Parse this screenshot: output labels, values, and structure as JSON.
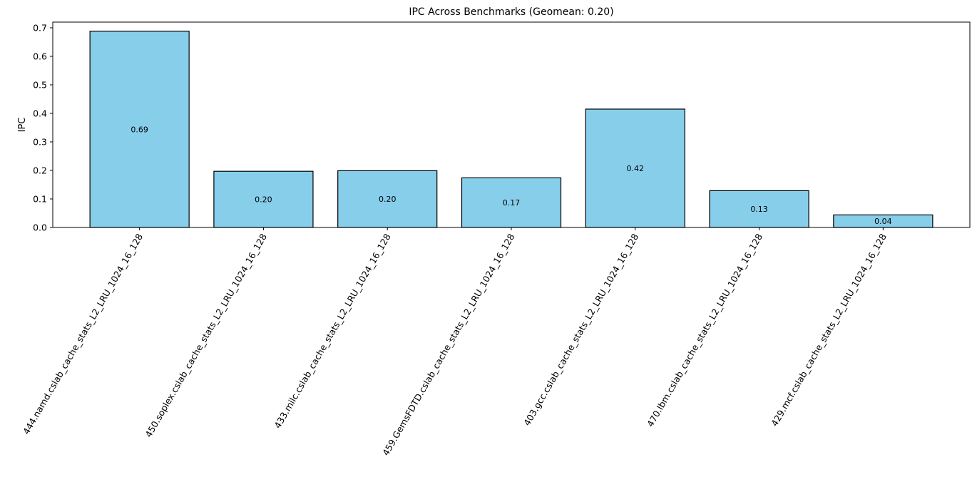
{
  "chart_data": {
    "type": "bar",
    "title": "IPC Across Benchmarks (Geomean: 0.20)",
    "xlabel": "",
    "ylabel": "IPC",
    "ylim": [
      0,
      0.72
    ],
    "yticks": [
      "0.0",
      "0.1",
      "0.2",
      "0.3",
      "0.4",
      "0.5",
      "0.6",
      "0.7"
    ],
    "categories": [
      "444.namd.cslab_cache_stats_L2_LRU_1024_16_128",
      "450.soplex.cslab_cache_stats_L2_LRU_1024_16_128",
      "433.milc.cslab_cache_stats_L2_LRU_1024_16_128",
      "459.GemsFDTD.cslab_cache_stats_L2_LRU_1024_16_128",
      "403.gcc.cslab_cache_stats_L2_LRU_1024_16_128",
      "470.lbm.cslab_cache_stats_L2_LRU_1024_16_128",
      "429.mcf.cslab_cache_stats_L2_LRU_1024_16_128"
    ],
    "values": [
      0.688,
      0.197,
      0.199,
      0.174,
      0.415,
      0.129,
      0.044
    ],
    "data_labels": [
      "0.69",
      "0.20",
      "0.20",
      "0.17",
      "0.42",
      "0.13",
      "0.04"
    ],
    "bar_color": "#87ceeb",
    "edge_color": "#000000",
    "grid": false,
    "legend": "none"
  }
}
